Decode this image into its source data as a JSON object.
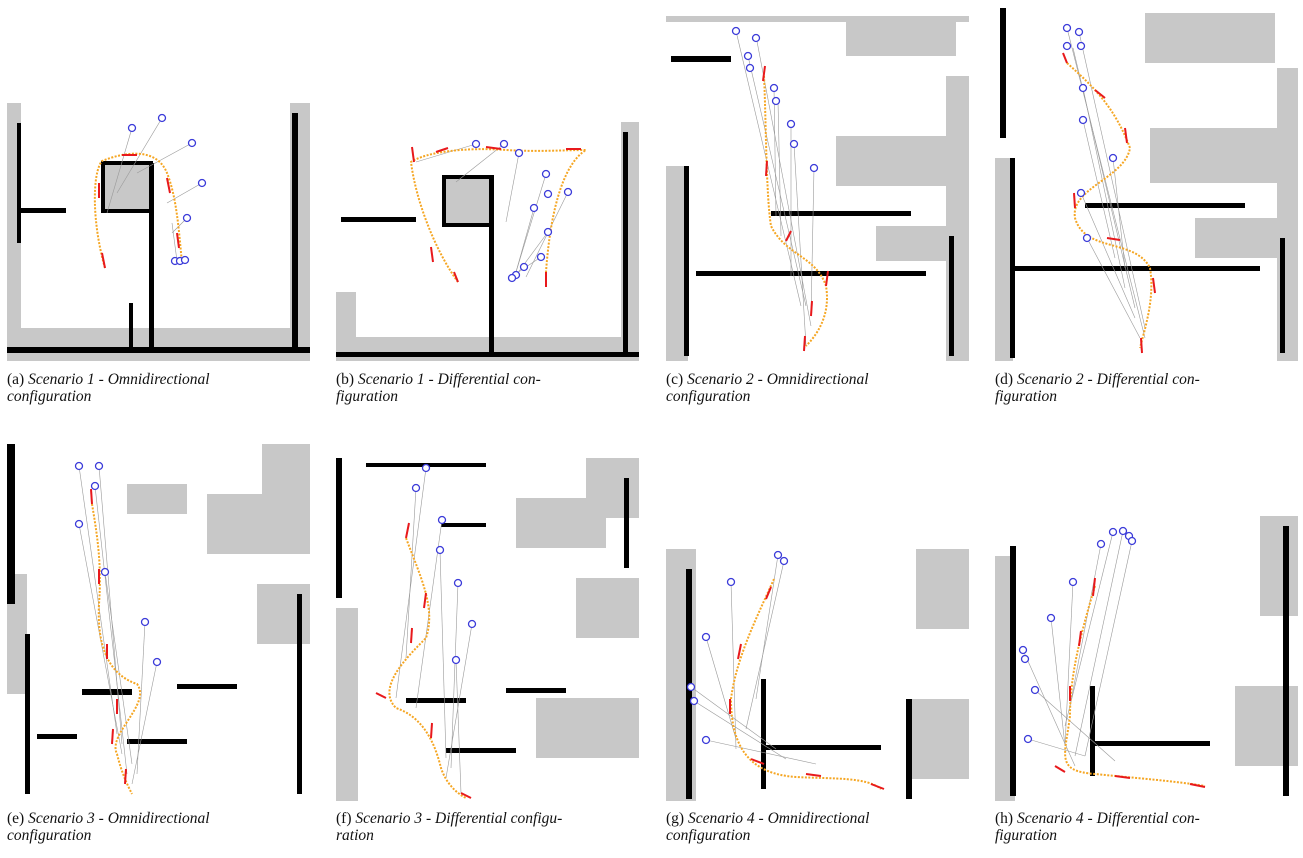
{
  "figure": {
    "panels": [
      {
        "id": "a",
        "label": "(a)",
        "caption_line1": "Scenario 1 - Omnidirectional",
        "caption_line2": "configuration"
      },
      {
        "id": "b",
        "label": "(b)",
        "caption_line1": "Scenario 1 - Differential con-",
        "caption_line2": "figuration"
      },
      {
        "id": "c",
        "label": "(c)",
        "caption_line1": "Scenario 2 - Omnidirectional",
        "caption_line2": "configuration"
      },
      {
        "id": "d",
        "label": "(d)",
        "caption_line1": "Scenario 2 - Differential con-",
        "caption_line2": "figuration"
      },
      {
        "id": "e",
        "label": "(e)",
        "caption_line1": "Scenario 3 - Omnidirectional",
        "caption_line2": "configuration"
      },
      {
        "id": "f",
        "label": "(f)",
        "caption_line1": "Scenario 3 - Differential configu-",
        "caption_line2": "ration"
      },
      {
        "id": "g",
        "label": "(g)",
        "caption_line1": "Scenario 4 - Omnidirectional",
        "caption_line2": "configuration"
      },
      {
        "id": "h",
        "label": "(h)",
        "caption_line1": "Scenario 4 - Differential con-",
        "caption_line2": "figuration"
      }
    ],
    "colors": {
      "occupied": "#000000",
      "unknown": "#c8c8c8",
      "free": "#ffffff",
      "trajectory": "#f5a623",
      "arrows": "#e8191c",
      "targets": "#3b3bd9",
      "rays": "#9a9a9a"
    }
  }
}
